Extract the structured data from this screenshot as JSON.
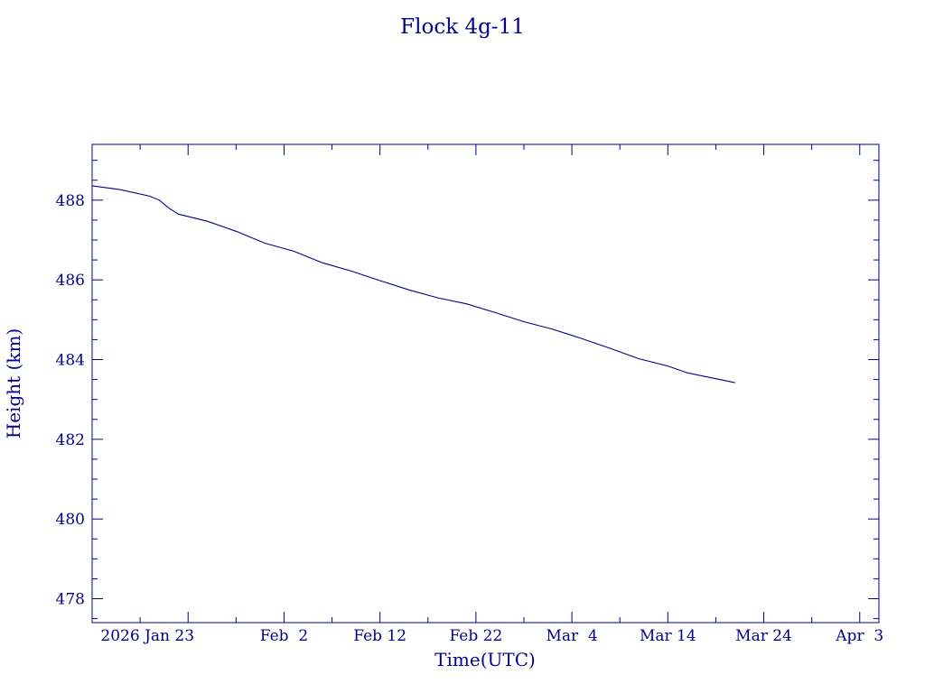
{
  "chart_data": {
    "type": "line",
    "title": "Flock 4g-11",
    "xlabel": "Time(UTC)",
    "ylabel": "Height (km)",
    "color": "#00008b",
    "ylim": [
      477.4,
      489.4
    ],
    "xlim": [
      "2026-01-13",
      "2026-04-05"
    ],
    "y_ticks": [
      "478",
      "480",
      "482",
      "484",
      "486",
      "488"
    ],
    "x_ticks": [
      {
        "date": "2026-01-23",
        "label": "2026 Jan 23"
      },
      {
        "date": "2026-02-02",
        "label": "Feb  2"
      },
      {
        "date": "2026-02-12",
        "label": "Feb 12"
      },
      {
        "date": "2026-02-22",
        "label": "Feb 22"
      },
      {
        "date": "2026-03-04",
        "label": "Mar  4"
      },
      {
        "date": "2026-03-14",
        "label": "Mar 14"
      },
      {
        "date": "2026-03-24",
        "label": "Mar 24"
      },
      {
        "date": "2026-04-03",
        "label": "Apr  3"
      }
    ],
    "series": [
      {
        "x": [
          "2026-01-13",
          "2026-01-16",
          "2026-01-19",
          "2026-01-20",
          "2026-01-21",
          "2026-01-22",
          "2026-01-25",
          "2026-01-28",
          "2026-01-31",
          "2026-02-03",
          "2026-02-06",
          "2026-02-09",
          "2026-02-12",
          "2026-02-15",
          "2026-02-18",
          "2026-02-21",
          "2026-02-24",
          "2026-02-27",
          "2026-03-02",
          "2026-03-05",
          "2026-03-08",
          "2026-03-11",
          "2026-03-14",
          "2026-03-16",
          "2026-03-19",
          "2026-03-21"
        ],
        "y": [
          488.36,
          488.26,
          488.1,
          488.0,
          487.8,
          487.65,
          487.47,
          487.22,
          486.92,
          486.72,
          486.43,
          486.22,
          485.98,
          485.75,
          485.55,
          485.4,
          485.18,
          484.95,
          484.76,
          484.53,
          484.28,
          484.02,
          483.84,
          483.67,
          483.52,
          483.42
        ]
      }
    ]
  }
}
